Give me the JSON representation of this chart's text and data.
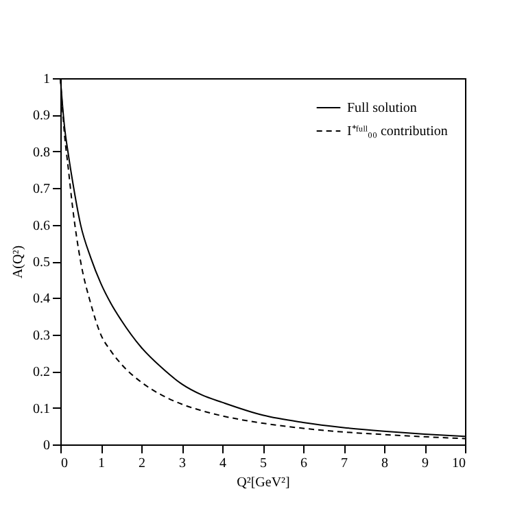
{
  "chart_data": {
    "type": "line",
    "xlabel": "Q²[GeV²]",
    "ylabel": "A(Q²)",
    "x": [
      0,
      0.05,
      0.1,
      0.2,
      0.3,
      0.5,
      0.75,
      1,
      1.25,
      1.5,
      2,
      2.5,
      3,
      3.5,
      4,
      5,
      6,
      7,
      8,
      9,
      10
    ],
    "series": [
      {
        "name": "Full solution",
        "color": "#000000",
        "line_style": "solid",
        "values": [
          1,
          0.93,
          0.87,
          0.79,
          0.72,
          0.6,
          0.51,
          0.44,
          0.385,
          0.34,
          0.265,
          0.21,
          0.165,
          0.135,
          0.115,
          0.08,
          0.06,
          0.046,
          0.036,
          0.028,
          0.022
        ]
      },
      {
        "name": "I⁺ᶠᵘˡˡ₀₀ contribution",
        "color": "#000000",
        "line_style": "dashed",
        "values": [
          1,
          0.92,
          0.85,
          0.75,
          0.65,
          0.5,
          0.385,
          0.3,
          0.255,
          0.22,
          0.17,
          0.135,
          0.11,
          0.092,
          0.078,
          0.058,
          0.044,
          0.034,
          0.027,
          0.021,
          0.016
        ]
      }
    ],
    "xlim": [
      0,
      10
    ],
    "xticks": [
      0,
      1,
      2,
      3,
      4,
      5,
      6,
      7,
      8,
      9,
      10
    ],
    "ylim": [
      0,
      1
    ],
    "yticks": [
      0,
      0.1,
      0.2,
      0.3,
      0.4,
      0.5,
      0.6,
      0.7,
      0.8,
      0.9,
      1
    ],
    "legend": "top right",
    "grid": false,
    "marker": "none"
  }
}
